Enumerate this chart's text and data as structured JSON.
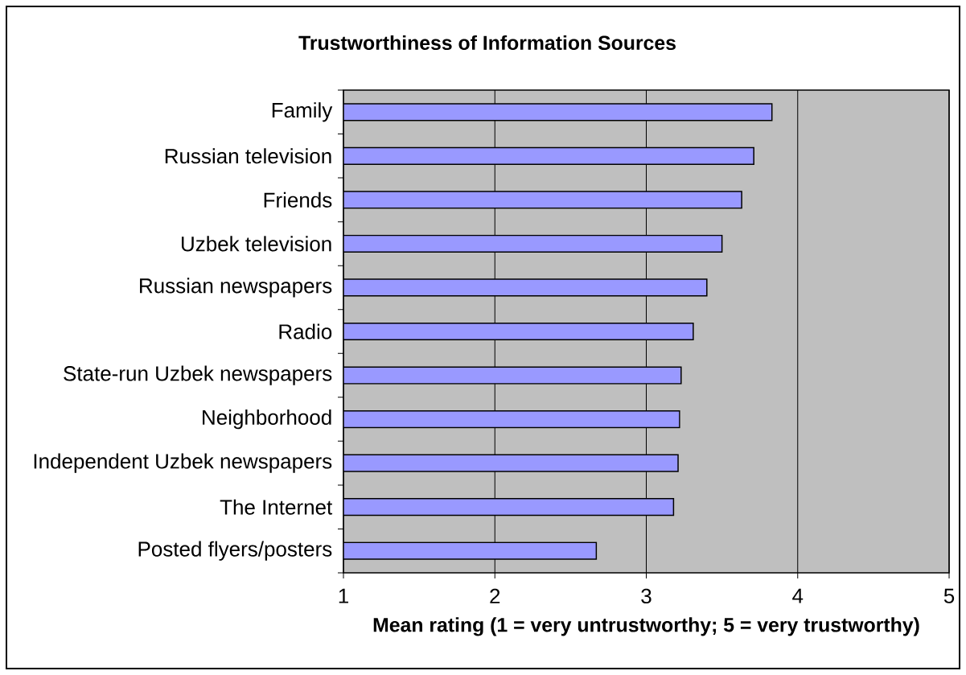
{
  "chart_data": {
    "type": "bar",
    "orientation": "horizontal",
    "title": "Trustworthiness of Information Sources",
    "xlabel": "Mean rating (1 = very untrustworthy; 5 = very trustworthy)",
    "categories": [
      "Family",
      "Russian television",
      "Friends",
      "Uzbek television",
      "Russian newspapers",
      "Radio",
      "State-run Uzbek newspapers",
      "Neighborhood",
      "Independent Uzbek newspapers",
      "The Internet",
      "Posted flyers/posters"
    ],
    "values": [
      3.83,
      3.71,
      3.63,
      3.5,
      3.4,
      3.31,
      3.23,
      3.22,
      3.21,
      3.18,
      2.67
    ],
    "color": "#9999ff",
    "xlim": [
      1,
      5
    ],
    "xticks": [
      1,
      2,
      3,
      4,
      5
    ],
    "grid": "x"
  }
}
